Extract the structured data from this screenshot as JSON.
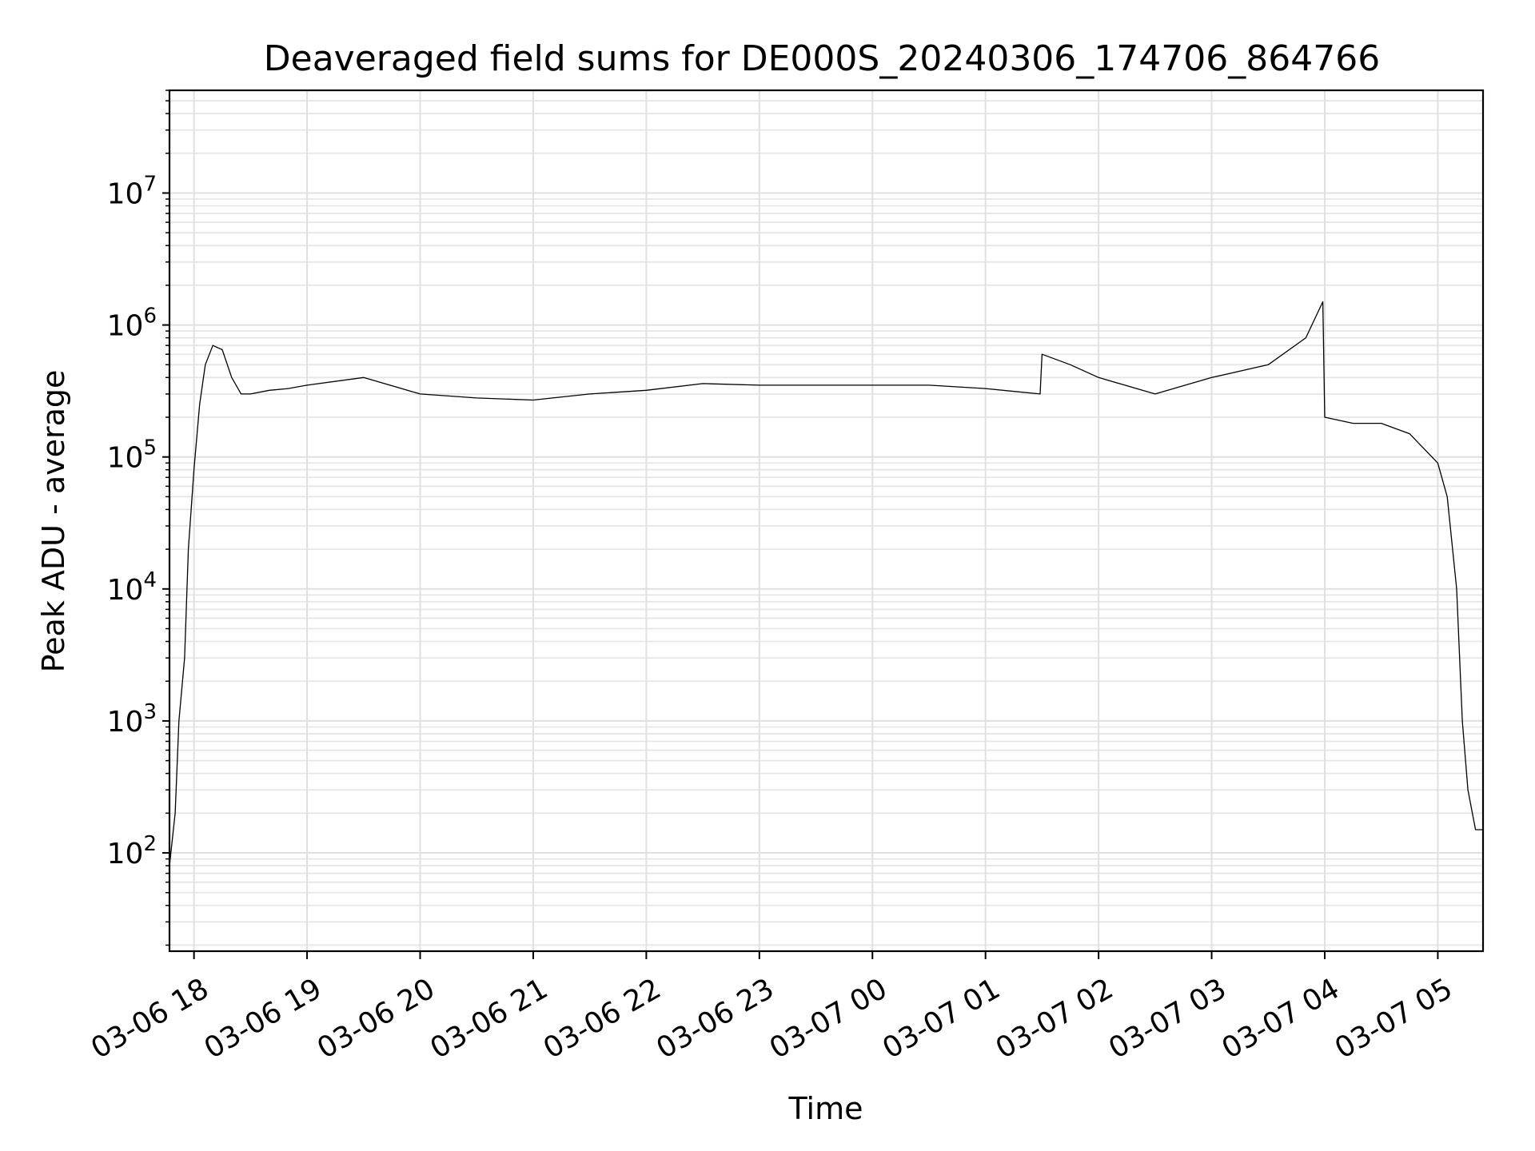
{
  "chart_data": {
    "type": "line",
    "title": "Deaveraged field sums for DE000S_20240306_174706_864766",
    "xlabel": "Time",
    "ylabel": "Peak ADU - average",
    "y_scale": "log",
    "ylim": [
      18,
      60000000
    ],
    "xlim": [
      "2024-03-06 17:47",
      "2024-03-07 05:24"
    ],
    "x_ticks": [
      "03-06 18",
      "03-06 19",
      "03-06 20",
      "03-06 21",
      "03-06 22",
      "03-06 23",
      "03-07 00",
      "03-07 01",
      "03-07 02",
      "03-07 03",
      "03-07 04",
      "03-07 05"
    ],
    "x_tick_times": [
      "2024-03-06 18:00",
      "2024-03-06 19:00",
      "2024-03-06 20:00",
      "2024-03-06 21:00",
      "2024-03-06 22:00",
      "2024-03-06 23:00",
      "2024-03-07 00:00",
      "2024-03-07 01:00",
      "2024-03-07 02:00",
      "2024-03-07 03:00",
      "2024-03-07 04:00",
      "2024-03-07 05:00"
    ],
    "y_ticks": [
      {
        "value": 100,
        "base": "10",
        "exp": "2"
      },
      {
        "value": 1000,
        "base": "10",
        "exp": "3"
      },
      {
        "value": 10000,
        "base": "10",
        "exp": "4"
      },
      {
        "value": 100000,
        "base": "10",
        "exp": "5"
      },
      {
        "value": 1000000,
        "base": "10",
        "exp": "6"
      },
      {
        "value": 10000000,
        "base": "10",
        "exp": "7"
      }
    ],
    "grid": true,
    "line_color": "#000000",
    "series": [
      {
        "x": [
          "2024-03-06 17:47",
          "2024-03-06 17:50",
          "2024-03-06 17:52",
          "2024-03-06 17:55",
          "2024-03-06 17:57",
          "2024-03-06 18:00",
          "2024-03-06 18:03",
          "2024-03-06 18:06",
          "2024-03-06 18:10",
          "2024-03-06 18:15",
          "2024-03-06 18:20",
          "2024-03-06 18:25",
          "2024-03-06 18:30",
          "2024-03-06 18:40",
          "2024-03-06 18:50",
          "2024-03-06 19:00",
          "2024-03-06 19:30",
          "2024-03-06 20:00",
          "2024-03-06 20:30",
          "2024-03-06 21:00",
          "2024-03-06 21:30",
          "2024-03-06 22:00",
          "2024-03-06 22:30",
          "2024-03-06 23:00",
          "2024-03-06 23:30",
          "2024-03-07 00:00",
          "2024-03-07 00:30",
          "2024-03-07 01:00",
          "2024-03-07 01:29",
          "2024-03-07 01:30",
          "2024-03-07 01:45",
          "2024-03-07 02:00",
          "2024-03-07 02:30",
          "2024-03-07 03:00",
          "2024-03-07 03:30",
          "2024-03-07 03:50",
          "2024-03-07 03:59",
          "2024-03-07 04:00",
          "2024-03-07 04:15",
          "2024-03-07 04:30",
          "2024-03-07 04:45",
          "2024-03-07 05:00",
          "2024-03-07 05:05",
          "2024-03-07 05:10",
          "2024-03-07 05:13",
          "2024-03-07 05:16",
          "2024-03-07 05:20",
          "2024-03-07 05:24"
        ],
        "values": [
          80,
          200,
          1000,
          3000,
          20000,
          80000,
          250000,
          500000,
          700000,
          650000,
          400000,
          300000,
          300000,
          320000,
          330000,
          350000,
          400000,
          300000,
          280000,
          270000,
          300000,
          320000,
          360000,
          350000,
          350000,
          350000,
          350000,
          330000,
          300000,
          600000,
          500000,
          400000,
          300000,
          400000,
          500000,
          800000,
          1500000,
          200000,
          180000,
          180000,
          150000,
          90000,
          50000,
          10000,
          1000,
          300,
          150,
          150
        ]
      }
    ]
  }
}
